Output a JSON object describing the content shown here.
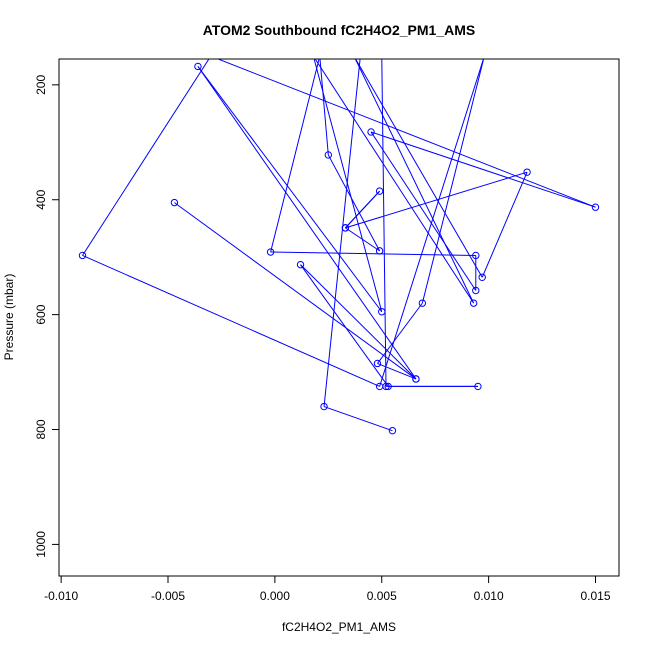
{
  "chart_data": {
    "type": "line",
    "title": "ATOM2 Southbound fC2H4O2_PM1_AMS",
    "xlabel": "fC2H4O2_PM1_AMS",
    "ylabel": "Pressure (mbar)",
    "xlim": [
      -0.0101,
      0.0161
    ],
    "ylim": [
      1055,
      155
    ],
    "y_reversed": true,
    "x_ticks": [
      -0.01,
      -0.005,
      0.0,
      0.005,
      0.01,
      0.015
    ],
    "x_tick_labels": [
      "-0.010",
      "-0.005",
      "0.000",
      "0.005",
      "0.010",
      "0.015"
    ],
    "y_ticks": [
      200,
      400,
      600,
      800,
      1000
    ],
    "y_tick_labels": [
      "200",
      "400",
      "600",
      "800",
      "1000"
    ],
    "grid": false,
    "legend": "none",
    "series": [
      {
        "color": "#0000ff",
        "marker": "open-circle",
        "x": [
          0.0055,
          0.0023,
          0.004,
          0.005,
          0.0052,
          0.0095,
          0.0053,
          0.0012,
          0.0066,
          -0.0036,
          0.005,
          0.0018,
          0.0093,
          0.0037,
          0.0097,
          0.0118,
          0.0033,
          0.0049,
          0.0033,
          0.0049,
          0.0025,
          0.0021,
          -0.0002,
          0.0094,
          0.0094,
          0.0045,
          0.015,
          -0.003,
          -0.009,
          0.0049,
          0.0098,
          0.0069,
          0.0048,
          0.0066,
          -0.0047
        ],
        "y": [
          802,
          760,
          150,
          150,
          725,
          725,
          725,
          513,
          712,
          168,
          595,
          150,
          580,
          150,
          535,
          352,
          449,
          385,
          449,
          489,
          322,
          150,
          491,
          497,
          558,
          282,
          413,
          150,
          497,
          725,
          150,
          580,
          685,
          712,
          405
        ]
      }
    ]
  }
}
